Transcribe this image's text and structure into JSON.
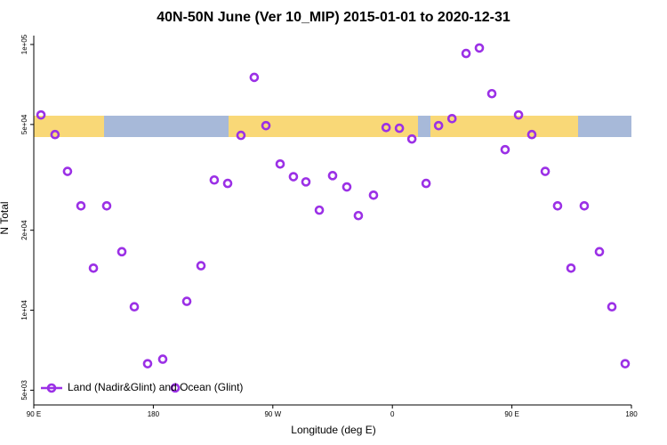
{
  "chart_data": {
    "type": "scatter",
    "title": "40N-50N June (Ver 10_MIP)   2015-01-01 to 2020-12-31",
    "x_label": "Longitude (deg E)",
    "y_label": "N Total",
    "log_y": true,
    "xlim": [
      90,
      540
    ],
    "ylim": [
      4400,
      108000
    ],
    "xticks": [
      {
        "value": 90,
        "label": "90 E"
      },
      180,
      {
        "value": 270,
        "label": "90 W"
      },
      {
        "value": 360,
        "label": "0"
      },
      {
        "value": 450,
        "label": "90 E"
      },
      {
        "value": 540,
        "label": "180"
      }
    ],
    "yticks": [
      {
        "value": 5000,
        "label": "5e+03"
      },
      {
        "value": 10000,
        "label": "1e+04"
      },
      {
        "value": 20000,
        "label": "2e+04"
      },
      {
        "value": 50000,
        "label": "5e+04"
      },
      {
        "value": 100000,
        "label": "1e+05"
      }
    ],
    "legend_position": "bottom-left",
    "series": [
      {
        "name": "Land (Nadir&Glint) and Ocean (Glint)",
        "color": "#9b30e6",
        "x": [
          95.4,
          106,
          115.4,
          125.5,
          134.9,
          144.9,
          156.3,
          165.7,
          175.7,
          187.1,
          196.5,
          205.2,
          215.9,
          225.9,
          236,
          246,
          256,
          264.8,
          275.5,
          285.5,
          294.9,
          305,
          315,
          325.7,
          334.4,
          345.8,
          355.3,
          365.3,
          374.7,
          385.4,
          394.8,
          404.9,
          415.5,
          425.5,
          434.9,
          444.9,
          455,
          465,
          475.1,
          484.4,
          494.5,
          504.5,
          515.9,
          525.3,
          535.3
        ],
        "values": [
          54300,
          45800,
          33300,
          24700,
          14400,
          24700,
          16600,
          10300,
          6290,
          6540,
          5100,
          10800,
          14700,
          30900,
          30000,
          45500,
          75200,
          49500,
          35500,
          31800,
          30400,
          23800,
          32100,
          29100,
          22700,
          27100,
          48700,
          48400,
          44100,
          30000,
          49500,
          52600,
          92500,
          97000,
          65300,
          40200,
          54300,
          45800,
          33300,
          24700,
          14400,
          24700,
          16600,
          10300,
          6290
        ]
      }
    ]
  }
}
